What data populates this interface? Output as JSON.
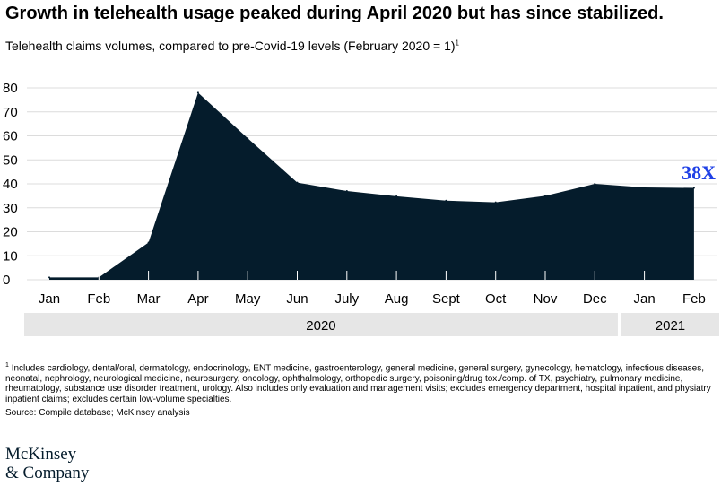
{
  "title": "Growth in telehealth usage peaked during April 2020 but has since stabilized.",
  "subtitle": "Telehealth claims volumes, compared to pre-Covid-19 levels (February 2020 = 1)",
  "subtitle_sup": "1",
  "footnote_marker": "1",
  "footnote": "Includes cardiology, dental/oral, dermatology, endocrinology, ENT medicine, gastroenterology, general medicine, general surgery, gynecology, hematology, infectious diseases, neonatal, nephrology, neurological medicine, neurosurgery, oncology, ophthalmology, orthopedic surgery, poisoning/drug tox./comp. of TX, psychiatry, pulmonary medicine, rheumatology, substance use disorder treatment, urology. Also includes only evaluation and management visits; excludes emergency department, hospital inpatient, and physiatry inpatient claims; excludes certain low-volume specialties.",
  "source": "Source: Compile database; McKinsey analysis",
  "logo": {
    "line1": "McKinsey",
    "line2": "& Company"
  },
  "chart_data": {
    "type": "area",
    "categories": [
      "Jan",
      "Feb",
      "Mar",
      "Apr",
      "May",
      "Jun",
      "July",
      "Aug",
      "Sept",
      "Oct",
      "Nov",
      "Dec",
      "Jan",
      "Feb"
    ],
    "values": [
      1,
      1,
      15.5,
      78,
      59,
      40.5,
      37,
      34.8,
      33,
      32.3,
      35,
      40,
      38.5,
      38.3
    ],
    "yticks": [
      0,
      10,
      20,
      30,
      40,
      50,
      60,
      70,
      80
    ],
    "ylim": [
      0,
      80
    ],
    "grid": true,
    "year_groups": [
      {
        "label": "2020",
        "span": 12
      },
      {
        "label": "2021",
        "span": 2
      }
    ],
    "annotation": "38X",
    "fill_color": "#051c2c",
    "annotation_color": "#1f40e6",
    "band_color": "#e6e6e6"
  }
}
